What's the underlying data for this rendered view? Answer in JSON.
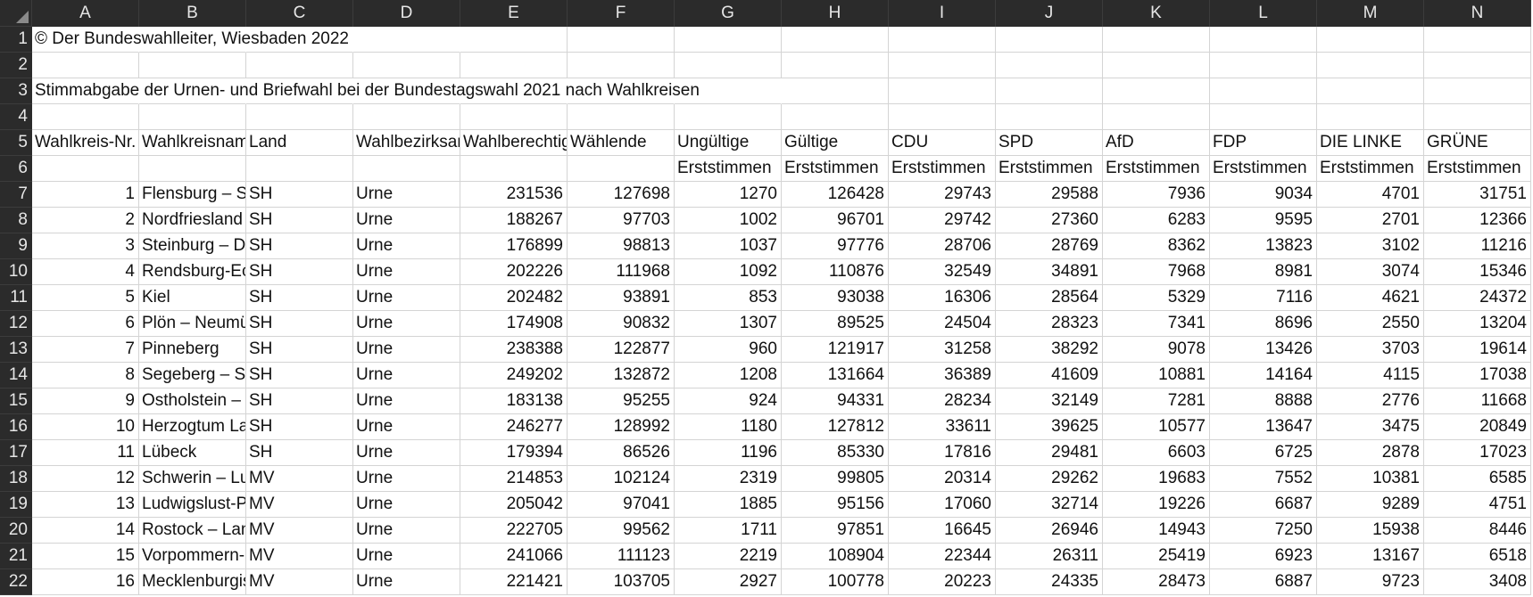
{
  "columns": [
    "A",
    "B",
    "C",
    "D",
    "E",
    "F",
    "G",
    "H",
    "I",
    "J",
    "K",
    "L",
    "M",
    "N"
  ],
  "row_numbers": [
    "1",
    "2",
    "3",
    "4",
    "5",
    "6",
    "7",
    "8",
    "9",
    "10",
    "11",
    "12",
    "13",
    "14",
    "15",
    "16",
    "17",
    "18",
    "19",
    "20",
    "21",
    "22"
  ],
  "cells": {
    "r1": "© Der Bundeswahlleiter, Wiesbaden 2022",
    "r3": "Stimmabgabe der Urnen- und Briefwahl bei der Bundestagswahl 2021 nach Wahlkreisen",
    "header5": [
      "Wahlkreis-Nr.",
      "Wahlkreisname",
      "Land",
      "Wahlbezirksart",
      "Wahlberechtigte",
      "Wählende",
      "Ungültige",
      "Gültige",
      "CDU",
      "SPD",
      "AfD",
      "FDP",
      "DIE LINKE",
      "GRÜNE"
    ],
    "header6": [
      "",
      "",
      "",
      "",
      "",
      "",
      "Erststimmen",
      "Erststimmen",
      "Erststimmen",
      "Erststimmen",
      "Erststimmen",
      "Erststimmen",
      "Erststimmen",
      "Erststimmen"
    ],
    "data": [
      [
        "1",
        "Flensburg – Schleswig",
        "SH",
        "Urne",
        "231536",
        "127698",
        "1270",
        "126428",
        "29743",
        "29588",
        "7936",
        "9034",
        "4701",
        "31751"
      ],
      [
        "2",
        "Nordfriesland – Dithmarschen Nord",
        "SH",
        "Urne",
        "188267",
        "97703",
        "1002",
        "96701",
        "29742",
        "27360",
        "6283",
        "9595",
        "2701",
        "12366"
      ],
      [
        "3",
        "Steinburg – Dithmarschen Süd",
        "SH",
        "Urne",
        "176899",
        "98813",
        "1037",
        "97776",
        "28706",
        "28769",
        "8362",
        "13823",
        "3102",
        "11216"
      ],
      [
        "4",
        "Rendsburg-Eckernförde",
        "SH",
        "Urne",
        "202226",
        "111968",
        "1092",
        "110876",
        "32549",
        "34891",
        "7968",
        "8981",
        "3074",
        "15346"
      ],
      [
        "5",
        "Kiel",
        "SH",
        "Urne",
        "202482",
        "93891",
        "853",
        "93038",
        "16306",
        "28564",
        "5329",
        "7116",
        "4621",
        "24372"
      ],
      [
        "6",
        "Plön – Neumünster",
        "SH",
        "Urne",
        "174908",
        "90832",
        "1307",
        "89525",
        "24504",
        "28323",
        "7341",
        "8696",
        "2550",
        "13204"
      ],
      [
        "7",
        "Pinneberg",
        "SH",
        "Urne",
        "238388",
        "122877",
        "960",
        "121917",
        "31258",
        "38292",
        "9078",
        "13426",
        "3703",
        "19614"
      ],
      [
        "8",
        "Segeberg – Stormarn-Mitte",
        "SH",
        "Urne",
        "249202",
        "132872",
        "1208",
        "131664",
        "36389",
        "41609",
        "10881",
        "14164",
        "4115",
        "17038"
      ],
      [
        "9",
        "Ostholstein – Stormarn-Nord",
        "SH",
        "Urne",
        "183138",
        "95255",
        "924",
        "94331",
        "28234",
        "32149",
        "7281",
        "8888",
        "2776",
        "11668"
      ],
      [
        "10",
        "Herzogtum Lauenburg – Stormarn-Süd",
        "SH",
        "Urne",
        "246277",
        "128992",
        "1180",
        "127812",
        "33611",
        "39625",
        "10577",
        "13647",
        "3475",
        "20849"
      ],
      [
        "11",
        "Lübeck",
        "SH",
        "Urne",
        "179394",
        "86526",
        "1196",
        "85330",
        "17816",
        "29481",
        "6603",
        "6725",
        "2878",
        "17023"
      ],
      [
        "12",
        "Schwerin – Ludwigslust-Parchim I – Nordwestmecklenburg I",
        "MV",
        "Urne",
        "214853",
        "102124",
        "2319",
        "99805",
        "20314",
        "29262",
        "19683",
        "7552",
        "10381",
        "6585"
      ],
      [
        "13",
        "Ludwigslust-Parchim II – Nordwestmecklenburg II – Landkreis Rostock I",
        "MV",
        "Urne",
        "205042",
        "97041",
        "1885",
        "95156",
        "17060",
        "32714",
        "19226",
        "6687",
        "9289",
        "4751"
      ],
      [
        "14",
        "Rostock – Landkreis Rostock II",
        "MV",
        "Urne",
        "222705",
        "99562",
        "1711",
        "97851",
        "16645",
        "26946",
        "14943",
        "7250",
        "15938",
        "8446"
      ],
      [
        "15",
        "Vorpommern-Rügen – Vorpommern-Greifswald I",
        "MV",
        "Urne",
        "241066",
        "111123",
        "2219",
        "108904",
        "22344",
        "26311",
        "25419",
        "6923",
        "13167",
        "6518"
      ],
      [
        "16",
        "Mecklenburgische Seenplatte I – Vorpommern-Greifswald II",
        "MV",
        "Urne",
        "221421",
        "103705",
        "2927",
        "100778",
        "20223",
        "24335",
        "28473",
        "6887",
        "9723",
        "3408"
      ]
    ]
  }
}
